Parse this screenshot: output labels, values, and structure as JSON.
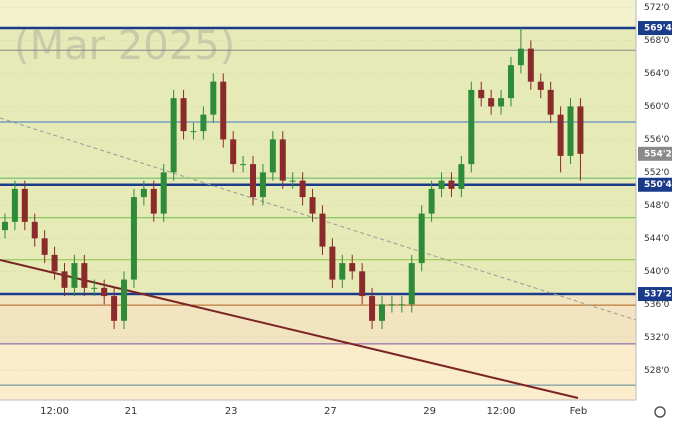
{
  "chart_data": {
    "type": "candlestick",
    "watermark": "(Mar 2025)",
    "up_color": "#2e8b3a",
    "down_color": "#8b2a2a",
    "open": [
      545,
      546,
      550,
      546,
      544,
      542,
      540,
      538,
      541,
      538,
      538,
      537,
      534,
      539,
      549,
      550,
      547,
      552,
      561,
      557,
      557,
      559,
      563,
      556,
      553,
      553,
      549,
      552,
      556,
      551,
      551,
      549,
      547,
      543,
      539,
      541,
      540,
      537,
      534,
      536,
      536,
      536,
      541,
      547,
      550,
      551,
      550,
      553,
      562,
      561,
      560,
      561,
      565,
      567,
      563,
      562,
      559,
      554,
      560
    ],
    "high": [
      547,
      551,
      551,
      547,
      545,
      543,
      541,
      542,
      542,
      539,
      539,
      538,
      540,
      550,
      551,
      551,
      553,
      562,
      562,
      558,
      560,
      564,
      564,
      557,
      554,
      554,
      553,
      557,
      557,
      552,
      552,
      550,
      548,
      544,
      542,
      542,
      541,
      538,
      537,
      537,
      537,
      542,
      548,
      551,
      552,
      552,
      554,
      563,
      563,
      562,
      562,
      566,
      569.5,
      568,
      564,
      563,
      560,
      561,
      561
    ],
    "low": [
      544,
      545,
      545,
      543,
      541,
      539,
      537,
      537,
      537,
      537,
      536,
      533,
      533,
      538,
      548,
      546,
      546,
      551,
      556,
      556,
      556,
      558,
      555,
      552,
      552,
      548,
      548,
      551,
      550,
      550,
      548,
      546,
      542,
      538,
      538,
      539,
      536,
      533,
      533,
      535,
      535,
      535,
      540,
      546,
      549,
      549,
      549,
      552,
      560,
      559,
      559,
      560,
      564,
      562,
      561,
      558,
      552,
      553,
      551
    ],
    "close": [
      546,
      550,
      546,
      544,
      542,
      540,
      538,
      541,
      538,
      538,
      537,
      534,
      539,
      549,
      550,
      547,
      552,
      561,
      557,
      557,
      559,
      563,
      556,
      553,
      553,
      549,
      552,
      556,
      551,
      551,
      549,
      547,
      543,
      539,
      541,
      540,
      537,
      534,
      536,
      536,
      536,
      541,
      547,
      550,
      551,
      550,
      553,
      562,
      561,
      560,
      561,
      565,
      567,
      563,
      562,
      559,
      554,
      560,
      554.25
    ],
    "xlim": [
      -0.5,
      63.6
    ],
    "xticks": [
      {
        "value": 5,
        "label": "12:00"
      },
      {
        "value": 12.7,
        "label": "21"
      },
      {
        "value": 22.8,
        "label": "23"
      },
      {
        "value": 32.8,
        "label": "27"
      },
      {
        "value": 42.8,
        "label": "29"
      },
      {
        "value": 50,
        "label": "12:00"
      },
      {
        "value": 57.8,
        "label": "Feb"
      }
    ],
    "ylim": [
      524.4,
      572.9
    ],
    "yticks": [
      {
        "value": 572,
        "label": "572'0"
      },
      {
        "value": 568,
        "label": "568'0"
      },
      {
        "value": 564,
        "label": "564'0"
      },
      {
        "value": 560,
        "label": "560'0"
      },
      {
        "value": 556,
        "label": "556'0"
      },
      {
        "value": 552,
        "label": "552'0"
      },
      {
        "value": 548,
        "label": "548'0"
      },
      {
        "value": 544,
        "label": "544'0"
      },
      {
        "value": 540,
        "label": "540'0"
      },
      {
        "value": 536,
        "label": "536'0"
      },
      {
        "value": 532,
        "label": "532'0"
      },
      {
        "value": 528,
        "label": "528'0"
      }
    ],
    "levels": [
      {
        "value": 569.5,
        "color": "#1a3a8a",
        "width": 2.5
      },
      {
        "value": 566.8,
        "color": "#888",
        "width": 1
      },
      {
        "value": 558.1,
        "color": "#3b78c4",
        "width": 1
      },
      {
        "value": 551.3,
        "color": "#5cb85c",
        "width": 1
      },
      {
        "value": 550.5,
        "color": "#1a3a8a",
        "width": 2.5
      },
      {
        "value": 546.5,
        "color": "#6cc04a",
        "width": 1
      },
      {
        "value": 541.4,
        "color": "#8bc34a",
        "width": 1
      },
      {
        "value": 537.25,
        "color": "#1a3a8a",
        "width": 2.5
      },
      {
        "value": 535.9,
        "color": "#b5651d",
        "width": 1
      },
      {
        "value": 531.2,
        "color": "#7a4fa0",
        "width": 1
      },
      {
        "value": 526.2,
        "color": "#5a8a9a",
        "width": 1
      }
    ],
    "price_tags": [
      {
        "value": 569.5,
        "label": "569'4",
        "color": "#1a3a8a"
      },
      {
        "value": 554.25,
        "label": "554'2",
        "color": "#8a8a8a"
      },
      {
        "value": 550.5,
        "label": "550'4",
        "color": "#1a3a8a"
      },
      {
        "value": 537.25,
        "label": "537'2",
        "color": "#1a3a8a"
      }
    ]
  }
}
